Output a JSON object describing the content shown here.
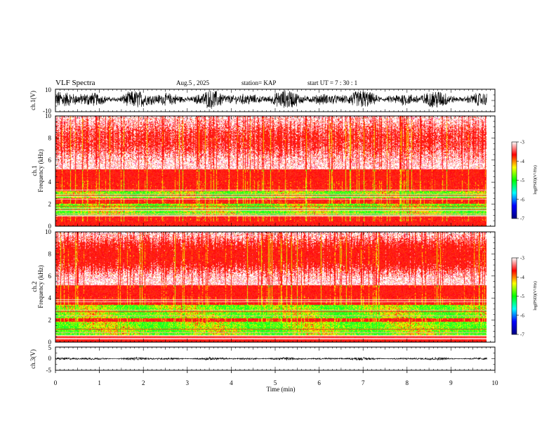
{
  "header": {
    "title": "VLF Spectra",
    "date": "Aug.5 , 2025",
    "station": "station= KAP",
    "start": "start UT = 7 : 30 : 1"
  },
  "chart_data": [
    {
      "type": "line",
      "name_label": "ch.1(V)",
      "ylabel": "ch.1(V)",
      "ylim": [
        -10,
        10
      ],
      "ytick_labels": [
        "10",
        "-10"
      ],
      "xlim": [
        0,
        10
      ],
      "data_extent_min": 9.82,
      "description_values": {
        "mean": 1.0,
        "amplitude": 8
      }
    },
    {
      "type": "heatmap",
      "ylabel": "ch.1\nFrequency (kHz)",
      "ylabel_lines": [
        "ch.1",
        "Frequency (kHz)"
      ],
      "ylim": [
        0,
        10
      ],
      "ytick_labels": [
        "0",
        "2",
        "4",
        "6",
        "8",
        "10"
      ],
      "xlim": [
        0,
        10
      ],
      "bands_khz": [
        [
          0.9,
          2.1
        ],
        [
          2.6,
          3.2
        ]
      ],
      "colorbar": {
        "label": "log(PSD)(V²/Hz)",
        "range": [
          -7,
          -3
        ],
        "tick_labels": [
          "-7",
          "-6",
          "-5",
          "-4",
          "-3"
        ],
        "colors": [
          "#000080",
          "#0000ff",
          "#00ffff",
          "#00ff00",
          "#ffff00",
          "#ff0000",
          "#ffffff"
        ]
      }
    },
    {
      "type": "heatmap",
      "ylabel": "ch.2\nFrequency (kHz)",
      "ylabel_lines": [
        "ch.2",
        "Frequency (kHz)"
      ],
      "ylim": [
        0,
        10
      ],
      "ytick_labels": [
        "0",
        "2",
        "4",
        "6",
        "8",
        "10"
      ],
      "xlim": [
        0,
        10
      ],
      "bands_khz": [
        [
          0.6,
          1.9
        ],
        [
          2.2,
          3.4
        ]
      ],
      "colorbar": {
        "label": "log(PSD)(V²/Hz)",
        "range": [
          -7,
          -3
        ],
        "tick_labels": [
          "-7",
          "-6",
          "-5",
          "-4",
          "-3"
        ],
        "colors": [
          "#000080",
          "#0000ff",
          "#00ffff",
          "#00ff00",
          "#ffff00",
          "#ff0000",
          "#ffffff"
        ]
      }
    },
    {
      "type": "line",
      "ylabel": "ch.3(V)",
      "ylim": [
        -5,
        5
      ],
      "ytick_labels": [
        "5",
        "0",
        "-5"
      ],
      "xlim": [
        0,
        10
      ],
      "xtick_labels": [
        "0",
        "1",
        "2",
        "3",
        "4",
        "5",
        "6",
        "7",
        "8",
        "9",
        "10"
      ],
      "xlabel": "Time (min)",
      "data_extent_min": 9.82,
      "description_values": {
        "mean": 0.0,
        "amplitude": 0.6
      }
    }
  ]
}
